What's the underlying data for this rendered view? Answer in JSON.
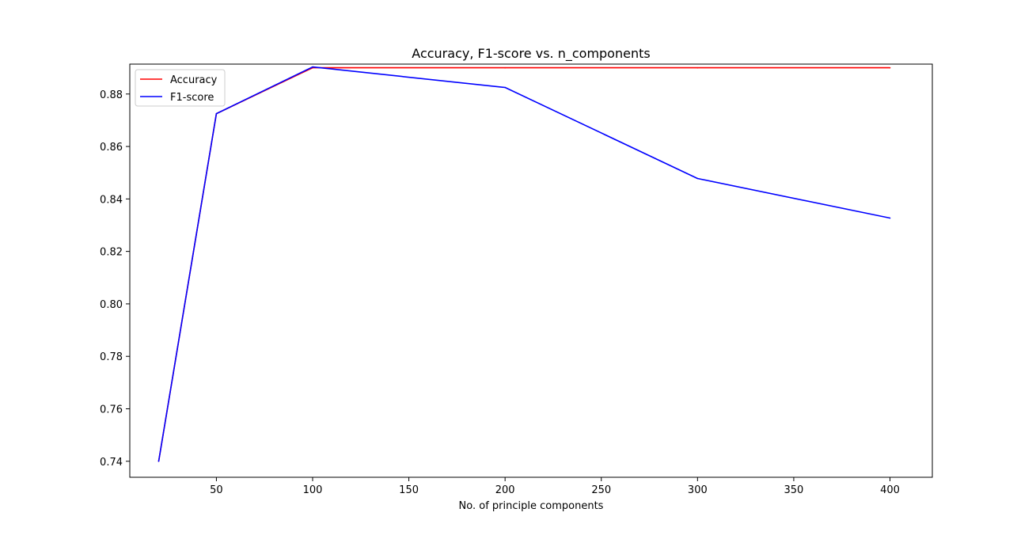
{
  "chart_data": {
    "type": "line",
    "title": "Accuracy, F1-score vs. n_components",
    "xlabel": "No. of principle components",
    "ylabel": "",
    "x": [
      20,
      50,
      100,
      200,
      300,
      400
    ],
    "xlim": [
      5,
      422
    ],
    "ylim": [
      0.7339,
      0.8914
    ],
    "xticks": [
      50,
      100,
      150,
      200,
      250,
      300,
      350,
      400
    ],
    "xtick_labels": [
      "50",
      "100",
      "150",
      "200",
      "250",
      "300",
      "350",
      "400"
    ],
    "yticks": [
      0.74,
      0.76,
      0.78,
      0.8,
      0.82,
      0.84,
      0.86,
      0.88
    ],
    "ytick_labels": [
      "0.74",
      "0.76",
      "0.78",
      "0.80",
      "0.82",
      "0.84",
      "0.86",
      "0.88"
    ],
    "grid": false,
    "legend_position": "upper-left",
    "series": [
      {
        "name": "Accuracy",
        "color": "#ff0000",
        "values": [
          0.74,
          0.8725,
          0.89,
          0.89,
          0.89,
          0.89
        ]
      },
      {
        "name": "F1-score",
        "color": "#0000ff",
        "values": [
          0.74,
          0.8725,
          0.8903,
          0.8825,
          0.8478,
          0.8327
        ]
      }
    ]
  }
}
